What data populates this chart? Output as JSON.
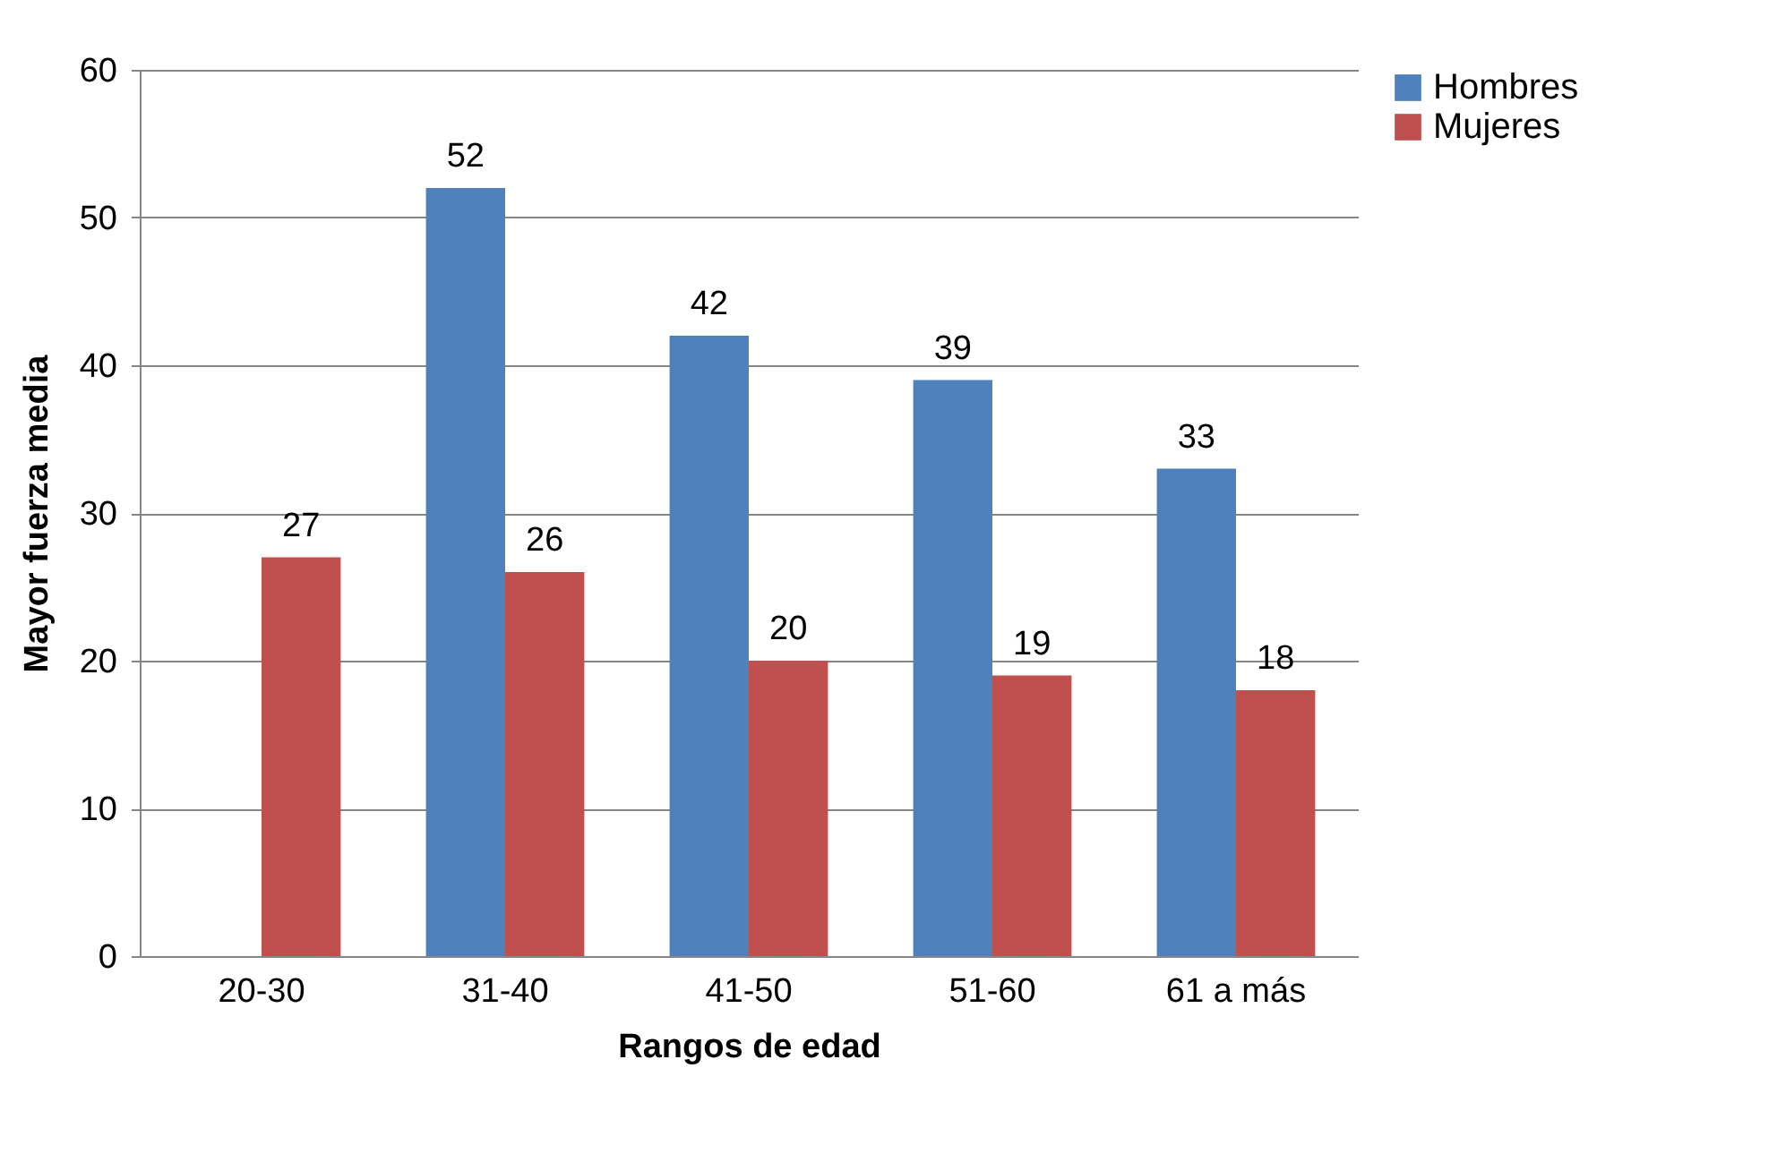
{
  "chart_data": {
    "type": "bar",
    "xlabel": "Rangos de edad",
    "ylabel": "Mayor fuerza media",
    "categories": [
      "20-30",
      "31-40",
      "41-50",
      "51-60",
      "61 a más"
    ],
    "series": [
      {
        "name": "Hombres",
        "color": "#4f81bd",
        "values": [
          null,
          52,
          42,
          39,
          33
        ]
      },
      {
        "name": "Mujeres",
        "color": "#c0504d",
        "values": [
          27,
          26,
          20,
          19,
          18
        ]
      }
    ],
    "ylim": [
      0,
      60
    ],
    "yticks": [
      0,
      10,
      20,
      30,
      40,
      50,
      60
    ],
    "grid": "y",
    "legend": "right",
    "data_labels": true
  }
}
